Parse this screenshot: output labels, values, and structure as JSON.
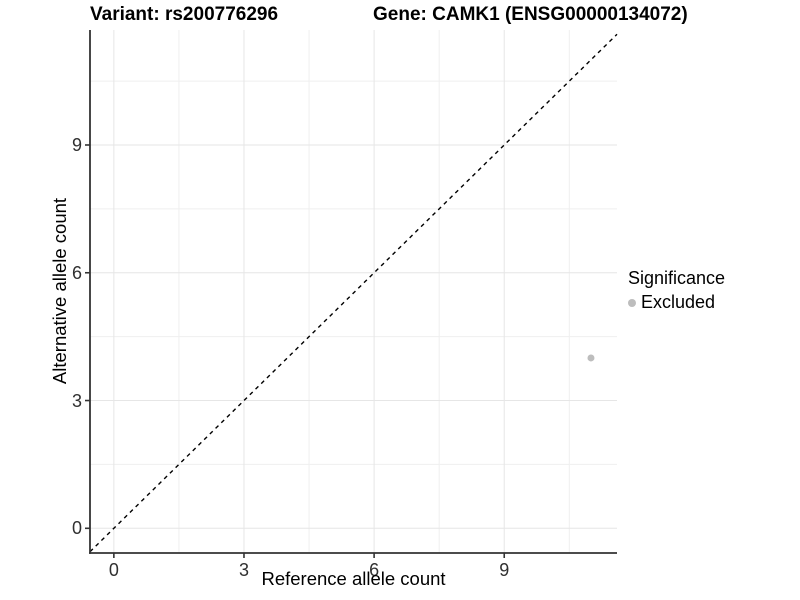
{
  "chart_data": {
    "type": "scatter",
    "title_left": "Variant: rs200776296",
    "title_right": "Gene: CAMK1 (ENSG00000134072)",
    "xlabel": "Reference allele count",
    "ylabel": "Alternative allele count",
    "x_ticks": [
      0,
      3,
      6,
      9
    ],
    "y_ticks": [
      0,
      3,
      6,
      9
    ],
    "xlim": [
      -0.55,
      11.6
    ],
    "ylim": [
      -0.58,
      11.7
    ],
    "grid": "major and minor gridlines, light gray on white; axis lines on left and bottom only",
    "reference_line": {
      "kind": "identity y=x",
      "style": "dashed",
      "color": "#000000"
    },
    "series": [
      {
        "name": "Excluded",
        "color": "#bdbdbd",
        "points": [
          {
            "x": 11,
            "y": 4
          }
        ]
      }
    ],
    "legend": {
      "position": "right",
      "title": "Significance",
      "items": [
        {
          "label": "Excluded",
          "color": "#bdbdbd"
        }
      ]
    }
  },
  "colors": {
    "background": "#ffffff",
    "axis_line": "#333333",
    "tick_mark": "#333333",
    "tick_text": "#303030",
    "title_text": "#000000",
    "grid_major": "#e6e6e6",
    "grid_minor": "#efefef",
    "point": "#bdbdbd",
    "reference_line": "#000000"
  }
}
